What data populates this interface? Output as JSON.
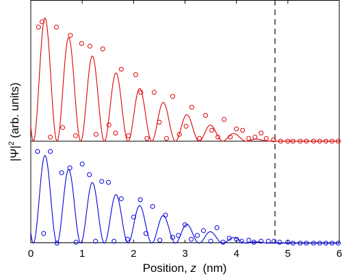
{
  "chart_data": {
    "type": "line",
    "xlabel_prefix": "Position, ",
    "xlabel_var": "z",
    "xlabel_unit": "  (nm)",
    "ylabel_main": "|Ψ|",
    "ylabel_exp": "2",
    "ylabel_unit": " (arb. units)",
    "xlim": [
      0,
      6
    ],
    "x_ticks": [
      "0",
      "1",
      "2",
      "3",
      "4",
      "5",
      "6"
    ],
    "grid": false,
    "legend": "none",
    "dashed_vline_x": 4.75,
    "upper_baseline_fraction": 0.58,
    "wave": {
      "cycles_per_nm": 2.17,
      "phase_nm": 0.05,
      "decay_end_nm": 4.75,
      "decay_power": 1.6,
      "upper_amplitude": 1.0,
      "lower_amplitude": 1.0
    },
    "series": [
      {
        "color": "#dd0000",
        "line": "solid",
        "markers": "open-circle",
        "x": [
          0.15,
          0.22,
          0.38,
          0.5,
          0.62,
          0.77,
          0.87,
          0.99,
          1.15,
          1.27,
          1.4,
          1.52,
          1.65,
          1.76,
          1.9,
          2.04,
          2.14,
          2.26,
          2.4,
          2.5,
          2.64,
          2.76,
          2.89,
          3.02,
          3.13,
          3.28,
          3.4,
          3.52,
          3.64,
          3.76,
          3.88,
          4.0,
          4.12,
          4.24,
          4.36,
          4.48,
          4.58,
          4.72,
          4.86,
          5.0,
          5.1,
          5.24,
          5.36,
          5.5,
          5.62,
          5.74,
          5.86,
          5.98
        ],
        "y": [
          0.84,
          0.88,
          0.03,
          0.84,
          0.1,
          0.78,
          0.04,
          0.72,
          0.7,
          0.05,
          0.68,
          0.12,
          0.06,
          0.53,
          0.04,
          0.49,
          0.36,
          0.02,
          0.36,
          0.14,
          0.02,
          0.33,
          0.05,
          0.11,
          0.25,
          0.02,
          0.19,
          0.08,
          0.03,
          0.16,
          0.03,
          0.09,
          0.08,
          0.02,
          0.03,
          0.06,
          0.02,
          0.01,
          0.0,
          0.0,
          0.0,
          0.0,
          0.0,
          0.0,
          0.0,
          0.0,
          0.0,
          0.0
        ]
      },
      {
        "color": "#0000dd",
        "line": "solid",
        "markers": "open-circle",
        "x": [
          0.13,
          0.25,
          0.38,
          0.51,
          0.6,
          0.76,
          0.88,
          1.0,
          1.14,
          1.26,
          1.38,
          1.51,
          1.62,
          1.76,
          1.88,
          2.0,
          2.13,
          2.24,
          2.37,
          2.51,
          2.62,
          2.76,
          2.87,
          3.0,
          3.12,
          3.24,
          3.36,
          3.5,
          3.62,
          3.74,
          3.86,
          4.0,
          4.1,
          4.24,
          4.34,
          4.48,
          4.62,
          4.73,
          4.84,
          5.0,
          5.1,
          5.24,
          5.36,
          5.5,
          5.62,
          5.74,
          5.86,
          5.98
        ],
        "y": [
          0.95,
          0.1,
          0.95,
          0.0,
          0.73,
          0.78,
          0.01,
          0.82,
          0.71,
          0.02,
          0.64,
          0.63,
          0.02,
          0.46,
          0.04,
          0.27,
          0.45,
          0.1,
          0.38,
          0.03,
          0.29,
          0.06,
          0.08,
          0.19,
          0.04,
          0.08,
          0.13,
          0.02,
          0.16,
          0.01,
          0.05,
          0.04,
          0.02,
          0.03,
          0.01,
          0.02,
          0.02,
          0.02,
          0.01,
          0.01,
          0.0,
          0.0,
          0.0,
          0.0,
          0.0,
          0.0,
          0.0,
          0.0
        ]
      }
    ]
  }
}
